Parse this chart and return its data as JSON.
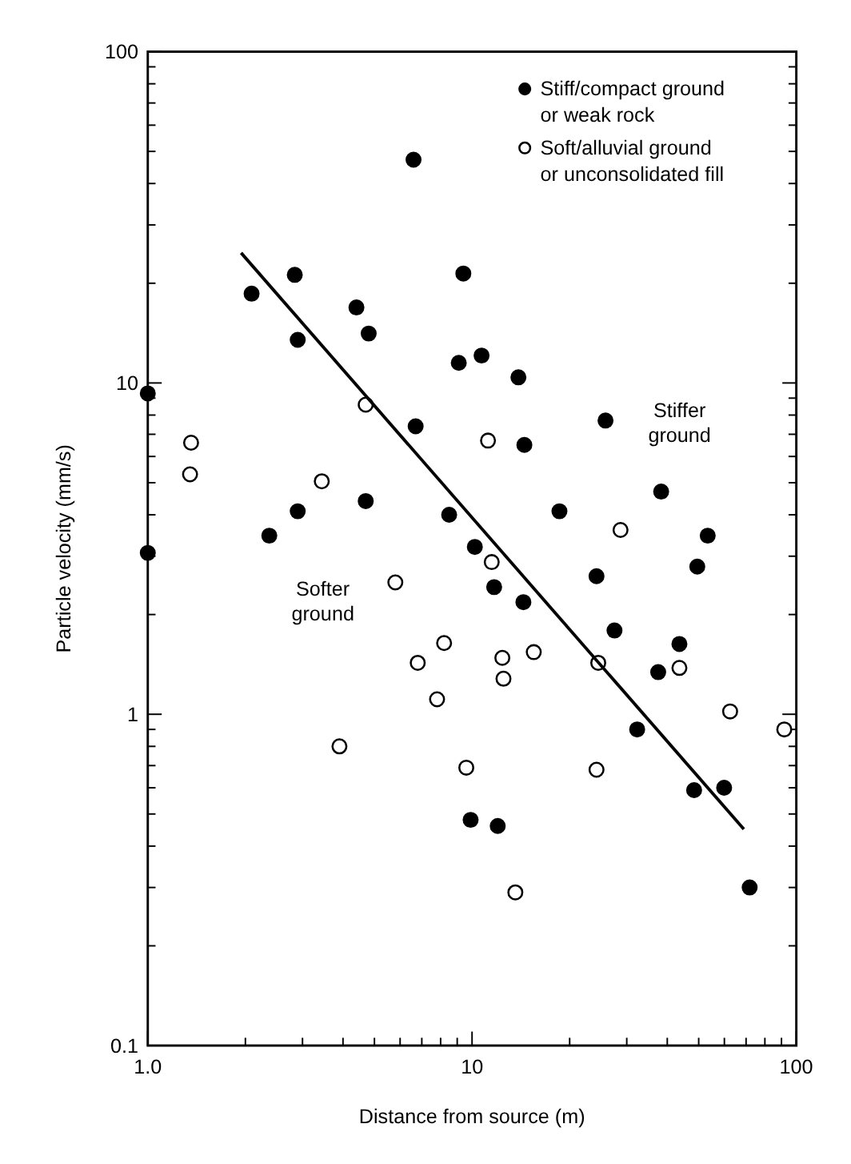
{
  "chart_data": {
    "type": "scatter",
    "xlabel": "Distance from source (m)",
    "ylabel": "Particle velocity (mm/s)",
    "log": "xy",
    "xlim": [
      1,
      100
    ],
    "ylim": [
      0.1,
      100
    ],
    "xticks": [
      {
        "value": 1,
        "label": "1.0"
      },
      {
        "value": 2,
        "label": null
      },
      {
        "value": 3,
        "label": null
      },
      {
        "value": 4,
        "label": null
      },
      {
        "value": 5,
        "label": null
      },
      {
        "value": 6,
        "label": null
      },
      {
        "value": 7,
        "label": null
      },
      {
        "value": 8,
        "label": null
      },
      {
        "value": 9,
        "label": null
      },
      10,
      {
        "value": 20,
        "label": null
      },
      {
        "value": 30,
        "label": null
      },
      {
        "value": 40,
        "label": null
      },
      {
        "value": 50,
        "label": null
      },
      {
        "value": 60,
        "label": null
      },
      {
        "value": 70,
        "label": null
      },
      {
        "value": 80,
        "label": null
      },
      {
        "value": 90,
        "label": null
      },
      100
    ],
    "yticks": [
      0.1,
      {
        "value": 0.2,
        "label": null
      },
      {
        "value": 0.3,
        "label": null
      },
      {
        "value": 0.4,
        "label": null
      },
      {
        "value": 0.5,
        "label": null
      },
      {
        "value": 0.6,
        "label": null
      },
      {
        "value": 0.7,
        "label": null
      },
      {
        "value": 0.8,
        "label": null
      },
      {
        "value": 0.9,
        "label": null
      },
      1,
      {
        "value": 2,
        "label": null
      },
      {
        "value": 3,
        "label": null
      },
      {
        "value": 4,
        "label": null
      },
      {
        "value": 5,
        "label": null
      },
      {
        "value": 6,
        "label": null
      },
      {
        "value": 7,
        "label": null
      },
      {
        "value": 8,
        "label": null
      },
      {
        "value": 9,
        "label": null
      },
      10,
      {
        "value": 20,
        "label": null
      },
      {
        "value": 30,
        "label": null
      },
      {
        "value": 40,
        "label": null
      },
      {
        "value": 50,
        "label": null
      },
      {
        "value": 60,
        "label": null
      },
      {
        "value": 70,
        "label": null
      },
      {
        "value": 80,
        "label": null
      },
      {
        "value": 90,
        "label": null
      },
      100
    ],
    "grid": false,
    "legend": "top right",
    "marker": "circle",
    "series": [
      {
        "name": "Stiff/compact ground or weak rock",
        "color": "#000000",
        "x": [
          6.6,
          2.84,
          2.09,
          4.4,
          4.8,
          2.9,
          1.0,
          6.7,
          4.7,
          2.9,
          2.37,
          8.5,
          1.0,
          9.4,
          9.1,
          10.7,
          13.9,
          25.8,
          14.5,
          38.3,
          18.6,
          53.3,
          10.2,
          11.7,
          14.4,
          24.2,
          49.5,
          27.5,
          43.6,
          37.5,
          32.3,
          48.4,
          59.9,
          9.9,
          12.0,
          71.8
        ],
        "values": [
          47.2,
          21.2,
          18.6,
          16.9,
          14.1,
          13.5,
          9.3,
          7.4,
          4.4,
          4.1,
          3.46,
          4.0,
          3.07,
          21.4,
          11.5,
          12.1,
          10.4,
          7.7,
          6.5,
          4.7,
          4.1,
          3.46,
          3.2,
          2.42,
          2.18,
          2.61,
          2.79,
          1.79,
          1.63,
          1.34,
          0.9,
          0.59,
          0.6,
          0.48,
          0.46,
          0.3
        ]
      },
      {
        "name": "Soft/alluvial ground or unconsolidated fill",
        "color": "#ffffff",
        "x": [
          4.7,
          1.36,
          1.35,
          3.44,
          11.2,
          28.7,
          11.5,
          8.2,
          12.4,
          15.5,
          12.5,
          24.5,
          43.6,
          7.8,
          6.8,
          62.5,
          91.8,
          9.6,
          24.2,
          13.6,
          5.8,
          3.9
        ],
        "values": [
          8.6,
          6.6,
          5.3,
          5.05,
          6.7,
          3.6,
          2.88,
          1.64,
          1.48,
          1.54,
          1.28,
          1.43,
          1.38,
          1.11,
          1.43,
          1.02,
          0.9,
          0.69,
          0.68,
          0.29,
          2.5,
          0.8
        ]
      },
      {
        "type": "line",
        "marker": "none",
        "color": "#000000",
        "x": [
          1.94,
          68.9
        ],
        "values": [
          24.7,
          0.45
        ]
      }
    ],
    "annotations": [
      "Stiffer ground",
      "Softer ground"
    ]
  }
}
